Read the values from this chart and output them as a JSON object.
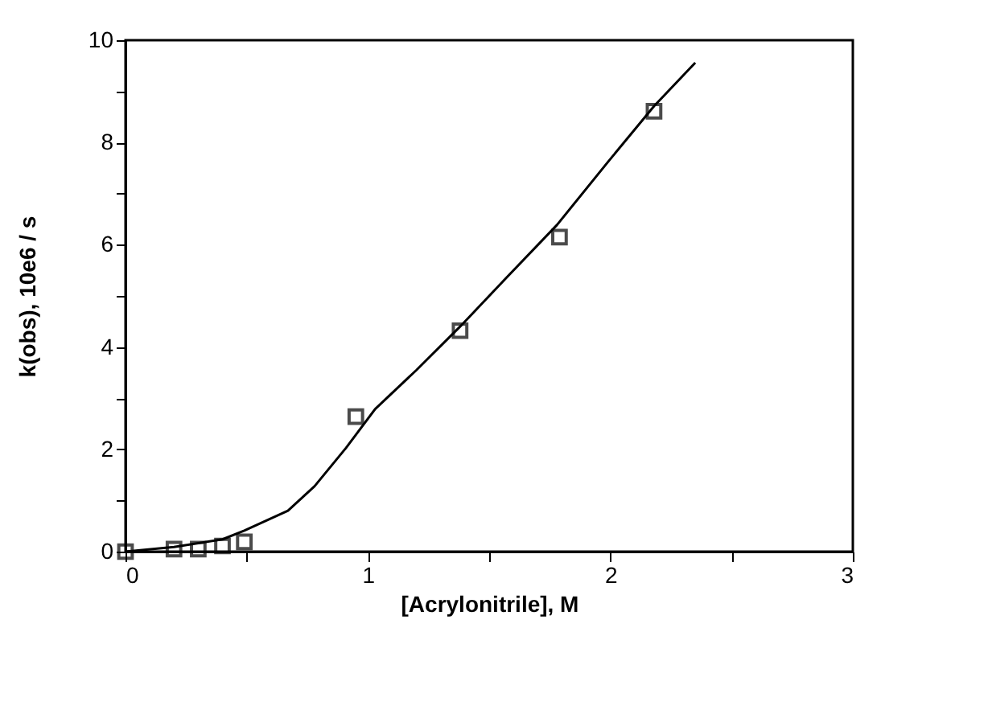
{
  "chart_data": {
    "type": "scatter",
    "xlabel": "[Acrylonitrile], M",
    "ylabel": "k(obs), 10e6 / s",
    "xlim": [
      0,
      3
    ],
    "ylim": [
      0,
      10
    ],
    "xticks": [
      0,
      {
        "value": 0.5,
        "label": null
      },
      1,
      {
        "value": 1.5,
        "label": null
      },
      2,
      {
        "value": 2.5,
        "label": null
      },
      3
    ],
    "yticks": [
      0,
      {
        "value": 1,
        "label": null
      },
      2,
      {
        "value": 3,
        "label": null
      },
      4,
      {
        "value": 5,
        "label": null
      },
      6,
      {
        "value": 7,
        "label": null
      },
      8,
      {
        "value": 9,
        "label": null
      },
      10
    ],
    "grid": false,
    "series": [
      {
        "marker": "square",
        "color": "#000000",
        "x": [
          0,
          0.2,
          0.3,
          0.4,
          0.49,
          0.95,
          1.38,
          1.79,
          2.18
        ],
        "values": [
          0,
          0.05,
          0.05,
          0.11,
          0.19,
          2.64,
          4.32,
          6.15,
          8.61
        ]
      },
      {
        "type": "line",
        "marker": "none",
        "line_style": "solid",
        "color": "#000000",
        "x": [
          0,
          0.2,
          0.4,
          0.49,
          0.67,
          0.78,
          0.91,
          1.03,
          1.2,
          1.38,
          1.57,
          1.78,
          1.99,
          2.18,
          2.35
        ],
        "values": [
          0,
          0.09,
          0.24,
          0.41,
          0.8,
          1.28,
          2.03,
          2.79,
          3.55,
          4.4,
          5.35,
          6.39,
          7.62,
          8.71,
          9.56
        ]
      }
    ]
  }
}
